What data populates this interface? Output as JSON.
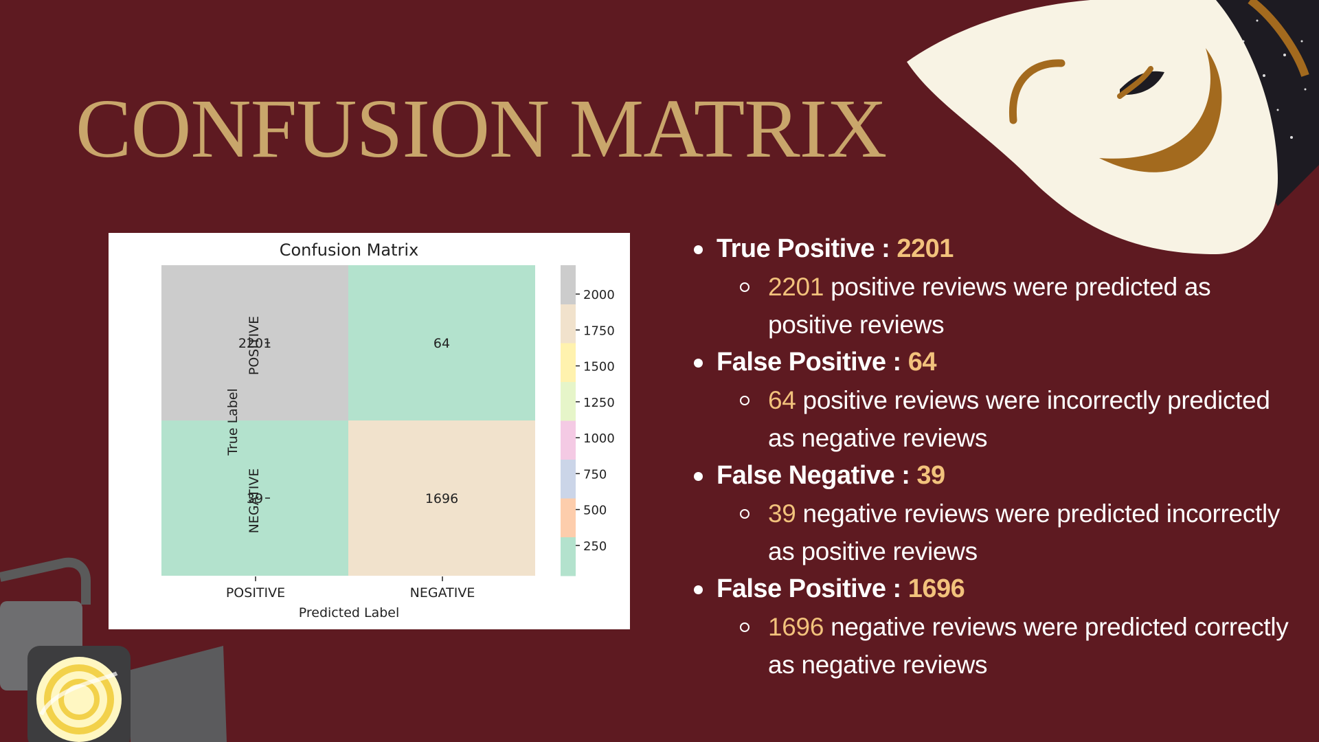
{
  "title": "CONFUSION MATRIX",
  "chart_data": {
    "type": "heatmap",
    "title": "Confusion Matrix",
    "xlabel": "Predicted Label",
    "ylabel": "True Label",
    "x_categories": [
      "POSITIVE",
      "NEGATIVE"
    ],
    "y_categories": [
      "POSITIVE",
      "NEGATIVE"
    ],
    "values": [
      [
        2201,
        64
      ],
      [
        39,
        1696
      ]
    ],
    "cell_labels": [
      [
        "2201",
        "64"
      ],
      [
        "39",
        "1696"
      ]
    ],
    "colorbar": {
      "ticks": [
        "2000",
        "1750",
        "1500",
        "1250",
        "1000",
        "750",
        "500",
        "250"
      ],
      "range": [
        39,
        2201
      ],
      "colors": [
        "#b3e2cd",
        "#fdcdac",
        "#cbd5e8",
        "#f4cae4",
        "#e6f5c9",
        "#fff2ae",
        "#f1e2cc",
        "#cccccc"
      ]
    },
    "colormap": "Pastel2"
  },
  "bullets": [
    {
      "label": "True Positive : ",
      "value": "2201",
      "sub_value": "2201",
      "sub_text": " positive reviews were predicted as positive reviews"
    },
    {
      "label": "False Positive : ",
      "value": "64",
      "sub_value": "64",
      "sub_text": " positive reviews were incorrectly predicted as negative reviews"
    },
    {
      "label": "False Negative : ",
      "value": "39",
      "sub_value": "39",
      "sub_text": " negative reviews were predicted incorrectly as positive reviews"
    },
    {
      "label": "False Positive : ",
      "value": "1696",
      "sub_value": "1696",
      "sub_text": " negative reviews were predicted correctly as negative reviews"
    }
  ],
  "decor": {
    "mask_icon": "theater-mask-icon",
    "spotlight_icon": "stage-spotlight-icon",
    "title_color": "#c9a66b",
    "background": "#5e1a21",
    "highlight": "#f2c27c"
  }
}
